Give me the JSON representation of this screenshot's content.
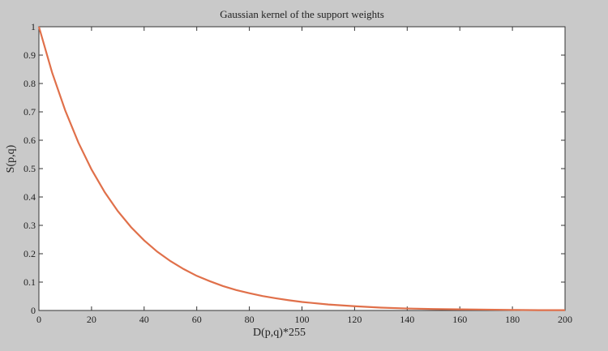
{
  "chart_data": {
    "type": "line",
    "title": "Gaussian kernel of the support weights",
    "xlabel": "D(p,q)*255",
    "ylabel": "S(p,q)",
    "xlim": [
      0,
      200
    ],
    "ylim": [
      0,
      1
    ],
    "xticks": [
      "0",
      "20",
      "40",
      "60",
      "80",
      "100",
      "120",
      "140",
      "160",
      "180",
      "200"
    ],
    "yticks": [
      "0",
      "0.1",
      "0.2",
      "0.3",
      "0.4",
      "0.5",
      "0.6",
      "0.7",
      "0.8",
      "0.9",
      "1"
    ],
    "grid": false,
    "series": [
      {
        "color": "#e0704a",
        "x": [
          0,
          5,
          10,
          15,
          20,
          25,
          30,
          35,
          40,
          45,
          50,
          55,
          60,
          65,
          70,
          75,
          80,
          85,
          90,
          95,
          100,
          110,
          120,
          130,
          140,
          150,
          160,
          170,
          180,
          190,
          200
        ],
        "y": [
          1.0,
          0.839,
          0.705,
          0.592,
          0.497,
          0.417,
          0.35,
          0.294,
          0.247,
          0.207,
          0.174,
          0.146,
          0.122,
          0.103,
          0.086,
          0.072,
          0.061,
          0.051,
          0.043,
          0.036,
          0.03,
          0.021,
          0.015,
          0.01,
          0.007,
          0.005,
          0.004,
          0.003,
          0.002,
          0.001,
          0.001
        ]
      }
    ]
  }
}
